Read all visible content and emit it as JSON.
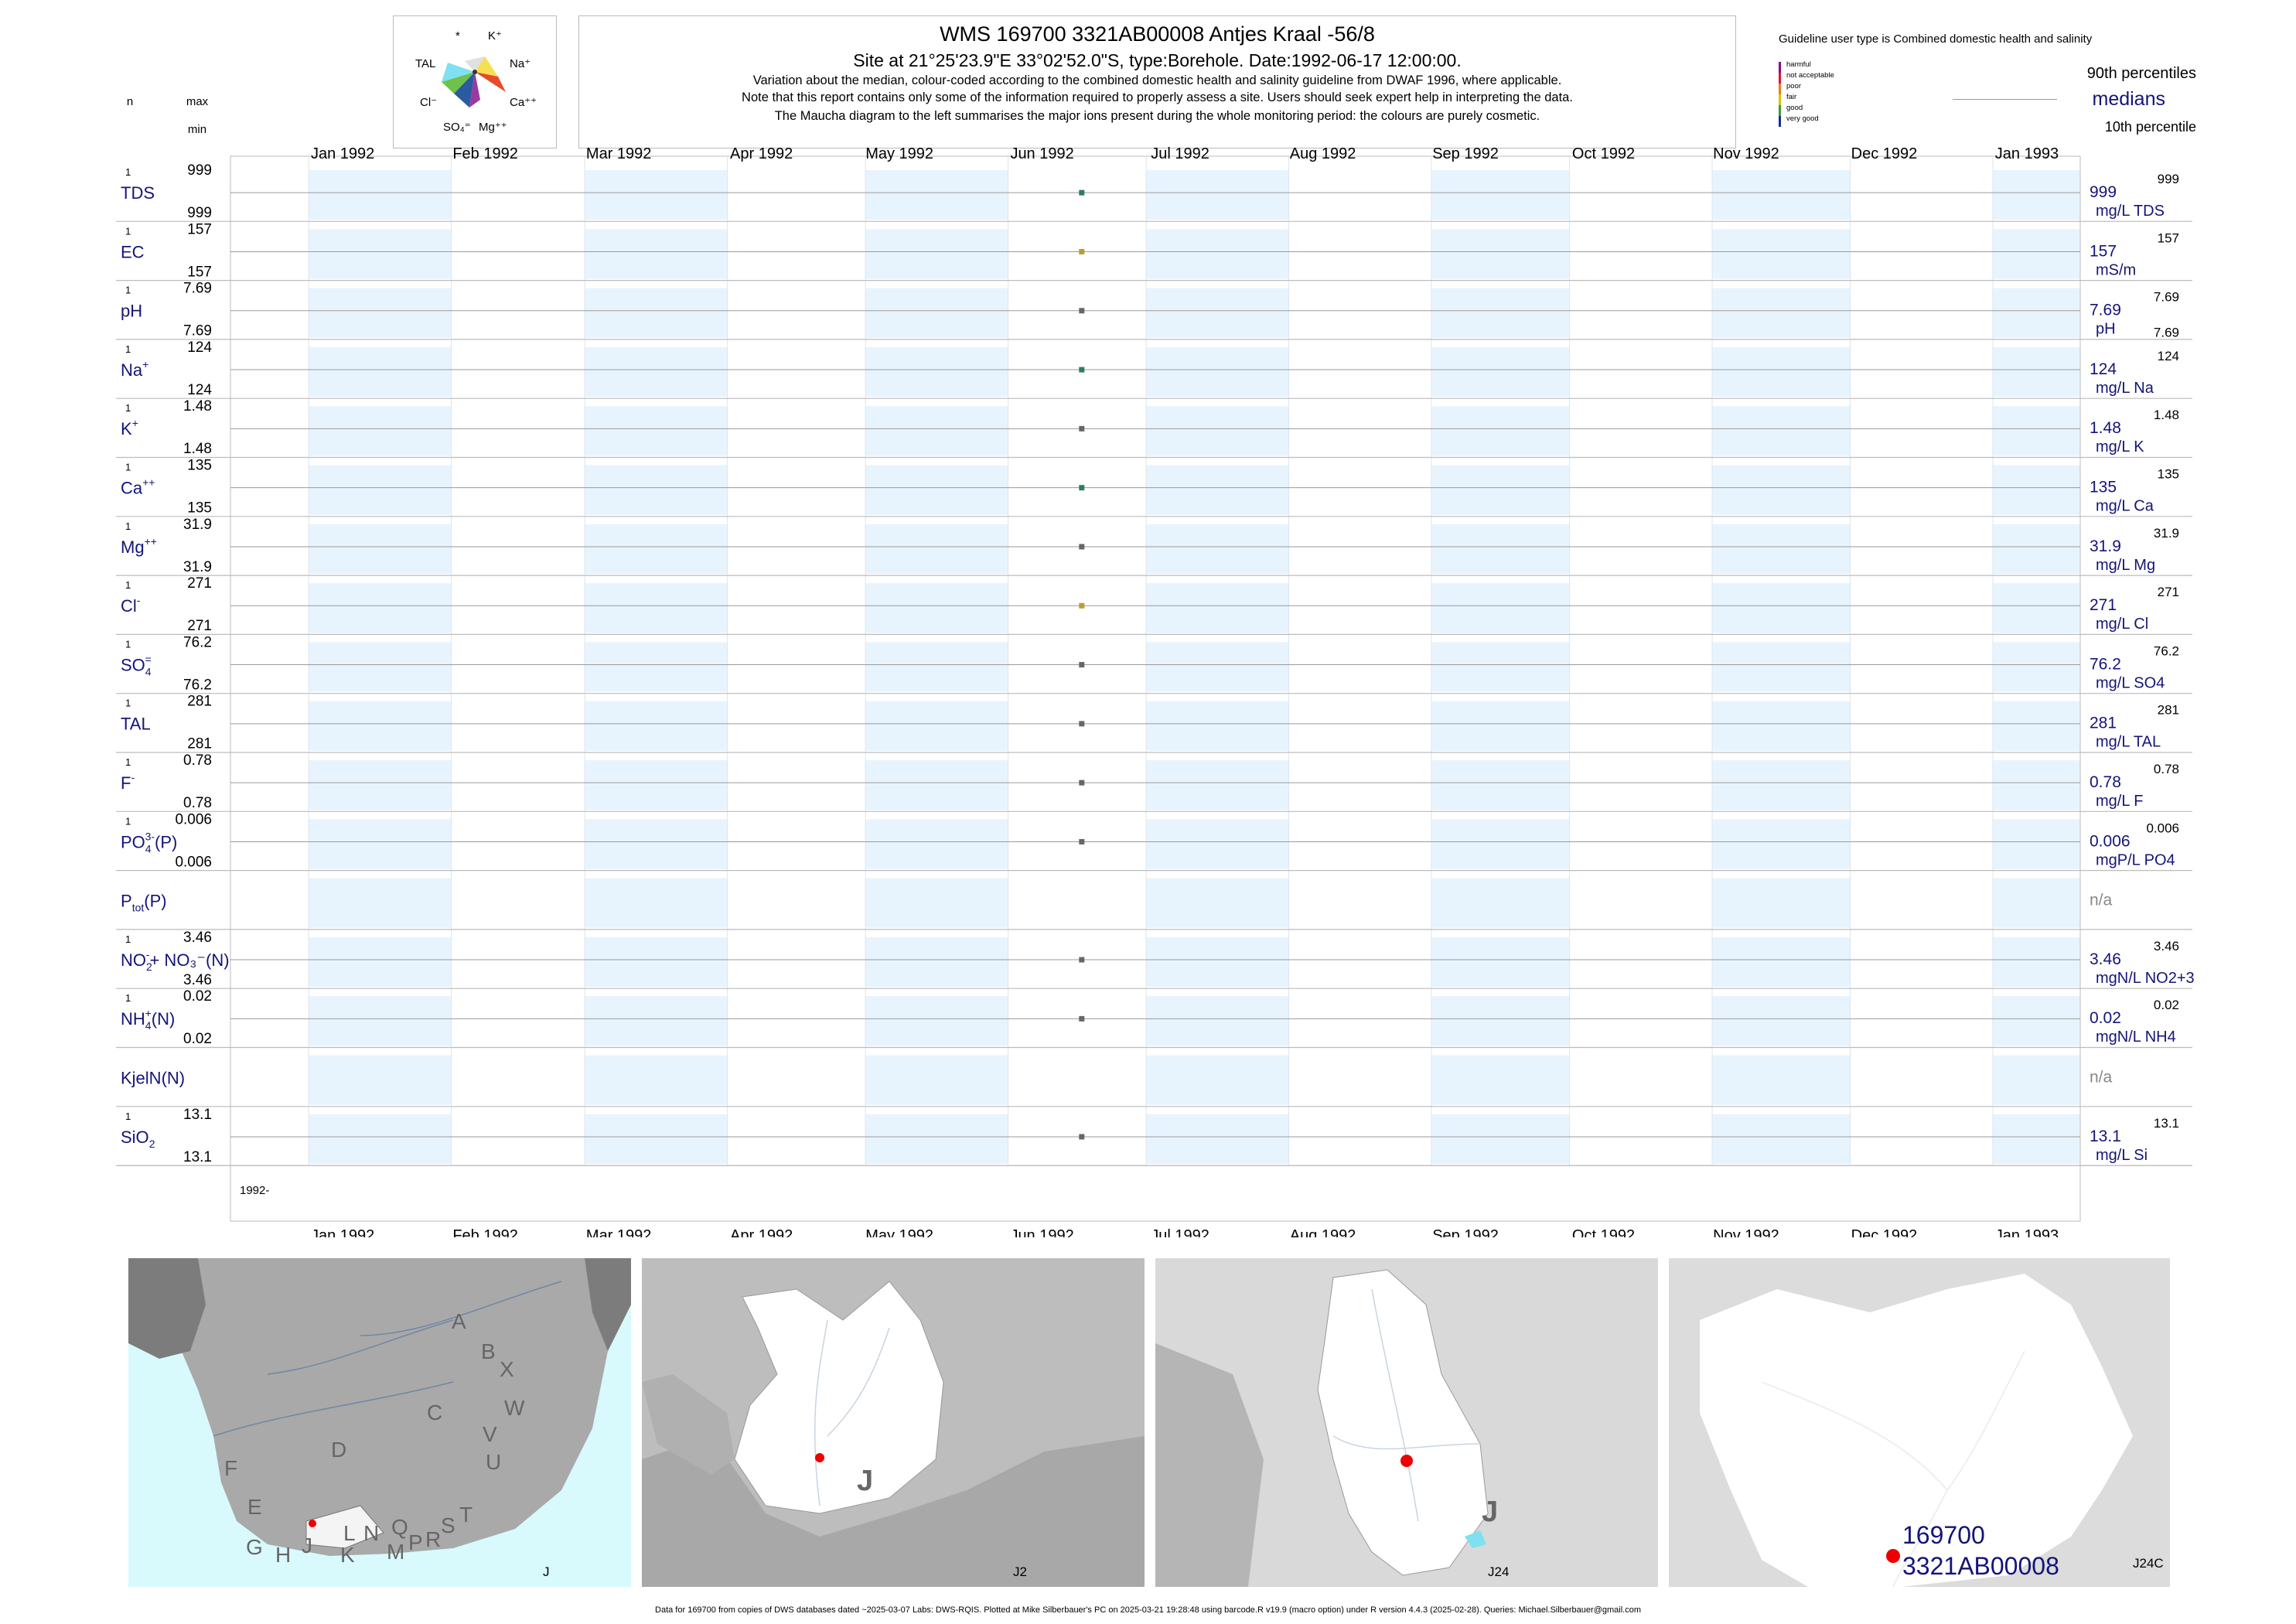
{
  "header": {
    "title": "WMS 169700 3321AB00008 Antjes Kraal -56/8",
    "site_line": "Site at 21°25'23.9\"E 33°02'52.0\"S, type:Borehole. Date:1992-06-17 12:00:00.",
    "note1": "Variation about the median,  colour-coded according to the combined domestic health and salinity guideline from DWAF 1996, where applicable.",
    "note2": "Note that this report contains only some of the information required to properly assess a site. Users should seek expert help in interpreting the data.",
    "note3": "The Maucha diagram to the left summarises the major ions present during the whole monitoring period: the colours are purely cosmetic."
  },
  "maucha": {
    "labels": [
      "*",
      "K⁺",
      "TAL",
      "Na⁺",
      "Cl⁻",
      "Ca⁺⁺",
      "SO₄⁼",
      "Mg⁺⁺"
    ]
  },
  "legend": {
    "guideline_title": "Guideline user type is Combined domestic health and salinity",
    "classes": [
      "harmful",
      "not acceptable",
      "poor",
      "fair",
      "good",
      "very good"
    ],
    "class_colors": [
      "#8b008b",
      "#e8102e",
      "#f07a1a",
      "#d9c200",
      "#3a9c3a",
      "#1a2d8a"
    ],
    "p90": "90th percentiles",
    "medians": "medians",
    "p10": "10th percentile"
  },
  "col_headers": {
    "n": "n",
    "max": "max",
    "min": "min"
  },
  "chart_data": {
    "type": "scatter",
    "x_axis": {
      "months": [
        "Jan 1992",
        "Feb 1992",
        "Mar 1992",
        "Apr 1992",
        "May 1992",
        "Jun 1992",
        "Jul 1992",
        "Aug 1992",
        "Sep 1992",
        "Oct 1992",
        "Nov 1992",
        "Dec 1992",
        "Jan 1993"
      ],
      "range": [
        "1991-12-15",
        "1993-01-20"
      ],
      "year_label": "1992-"
    },
    "sample_date": "1992-06-17",
    "variables": [
      {
        "label": "TDS",
        "sup": "",
        "sub": "",
        "n": "1",
        "max": "999",
        "min": "999",
        "median": "999",
        "p90": "999",
        "unit": "mg/L TDS",
        "value": 999,
        "color": "#2e7d5b"
      },
      {
        "label": "EC",
        "sup": "",
        "sub": "",
        "n": "1",
        "max": "157",
        "min": "157",
        "median": "157",
        "p90": "157",
        "unit": "mS/m",
        "value": 157,
        "color": "#b5a030"
      },
      {
        "label": "pH",
        "sup": "",
        "sub": "",
        "n": "1",
        "max": "7.69",
        "min": "7.69",
        "median": "7.69",
        "p90": "7.69",
        "p10": "7.69",
        "unit": "pH",
        "value": 7.69,
        "color": "#666666"
      },
      {
        "label": "Na",
        "sup": "+",
        "sub": "",
        "n": "1",
        "max": "124",
        "min": "124",
        "median": "124",
        "p90": "124",
        "unit": "mg/L Na",
        "value": 124,
        "color": "#2e7d5b"
      },
      {
        "label": "K",
        "sup": "+",
        "sub": "",
        "n": "1",
        "max": "1.48",
        "min": "1.48",
        "median": "1.48",
        "p90": "1.48",
        "unit": "mg/L K",
        "value": 1.48,
        "color": "#666666"
      },
      {
        "label": "Ca",
        "sup": "++",
        "sub": "",
        "n": "1",
        "max": "135",
        "min": "135",
        "median": "135",
        "p90": "135",
        "unit": "mg/L Ca",
        "value": 135,
        "color": "#2e7d5b"
      },
      {
        "label": "Mg",
        "sup": "++",
        "sub": "",
        "n": "1",
        "max": "31.9",
        "min": "31.9",
        "median": "31.9",
        "p90": "31.9",
        "unit": "mg/L Mg",
        "value": 31.9,
        "color": "#666666"
      },
      {
        "label": "Cl",
        "sup": "-",
        "sub": "",
        "n": "1",
        "max": "271",
        "min": "271",
        "median": "271",
        "p90": "271",
        "unit": "mg/L Cl",
        "value": 271,
        "color": "#b5a030"
      },
      {
        "label": "SO",
        "sup": "=",
        "sub": "4",
        "n": "1",
        "max": "76.2",
        "min": "76.2",
        "median": "76.2",
        "p90": "76.2",
        "unit": "mg/L SO4",
        "value": 76.2,
        "color": "#666666"
      },
      {
        "label": "TAL",
        "sup": "",
        "sub": "",
        "n": "1",
        "max": "281",
        "min": "281",
        "median": "281",
        "p90": "281",
        "unit": "mg/L TAL",
        "value": 281,
        "color": "#666666"
      },
      {
        "label": "F",
        "sup": "-",
        "sub": "",
        "n": "1",
        "max": "0.78",
        "min": "0.78",
        "median": "0.78",
        "p90": "0.78",
        "unit": "mg/L F",
        "value": 0.78,
        "color": "#666666"
      },
      {
        "label": "PO",
        "sup": "3-",
        "sub": "4",
        "suffix": "(P)",
        "n": "1",
        "max": "0.006",
        "min": "0.006",
        "median": "0.006",
        "p90": "0.006",
        "unit": "mgP/L PO4",
        "value": 0.006,
        "color": "#666666"
      },
      {
        "label": "P",
        "sup": "",
        "sub": "tot",
        "suffix": "(P)",
        "n": "",
        "max": "",
        "min": "",
        "median": "n/a",
        "p90": "",
        "unit": "",
        "value": null,
        "color": "#666666"
      },
      {
        "label": "NO",
        "sup": "-",
        "sub": "2",
        "suffix": "+ NO₃⁻(N)",
        "n": "1",
        "max": "3.46",
        "min": "3.46",
        "median": "3.46",
        "p90": "3.46",
        "unit": "mgN/L NO2+3",
        "value": 3.46,
        "color": "#666666"
      },
      {
        "label": "NH",
        "sup": "+",
        "sub": "4",
        "suffix": "(N)",
        "n": "1",
        "max": "0.02",
        "min": "0.02",
        "median": "0.02",
        "p90": "0.02",
        "unit": "mgN/L NH4",
        "value": 0.02,
        "color": "#666666"
      },
      {
        "label": "KjelN(N)",
        "sup": "",
        "sub": "",
        "n": "",
        "max": "",
        "min": "",
        "median": "n/a",
        "p90": "",
        "unit": "",
        "value": null,
        "color": "#666666"
      },
      {
        "label": "SiO",
        "sup": "",
        "sub": "2",
        "n": "1",
        "max": "13.1",
        "min": "13.1",
        "median": "13.1",
        "p90": "13.1",
        "unit": "mg/L Si",
        "value": 13.1,
        "color": "#666666"
      }
    ]
  },
  "maps": [
    {
      "corner_label": "J",
      "region_letters": [
        "A",
        "B",
        "X",
        "C",
        "W",
        "D",
        "V",
        "U",
        "F",
        "T",
        "E",
        "S",
        "L",
        "N",
        "Q",
        "R",
        "G",
        "H",
        "J",
        "K",
        "M",
        "P"
      ]
    },
    {
      "corner_label": "J2",
      "big_letter": "J"
    },
    {
      "corner_label": "J24",
      "big_letter": "J"
    },
    {
      "corner_label": "J24C",
      "site_id": "169700",
      "site_code": "3321AB00008"
    }
  ],
  "footer": "Data for 169700 from copies of DWS databases dated ~2025-03-07 Labs: DWS-RQIS. Plotted at Mike Silberbauer's PC on 2025-03-21 19:28:48 using barcode.R v19.9 (macro option) under R version 4.4.3 (2025-02-28). Queries: Michael.Silberbauer@gmail.com"
}
